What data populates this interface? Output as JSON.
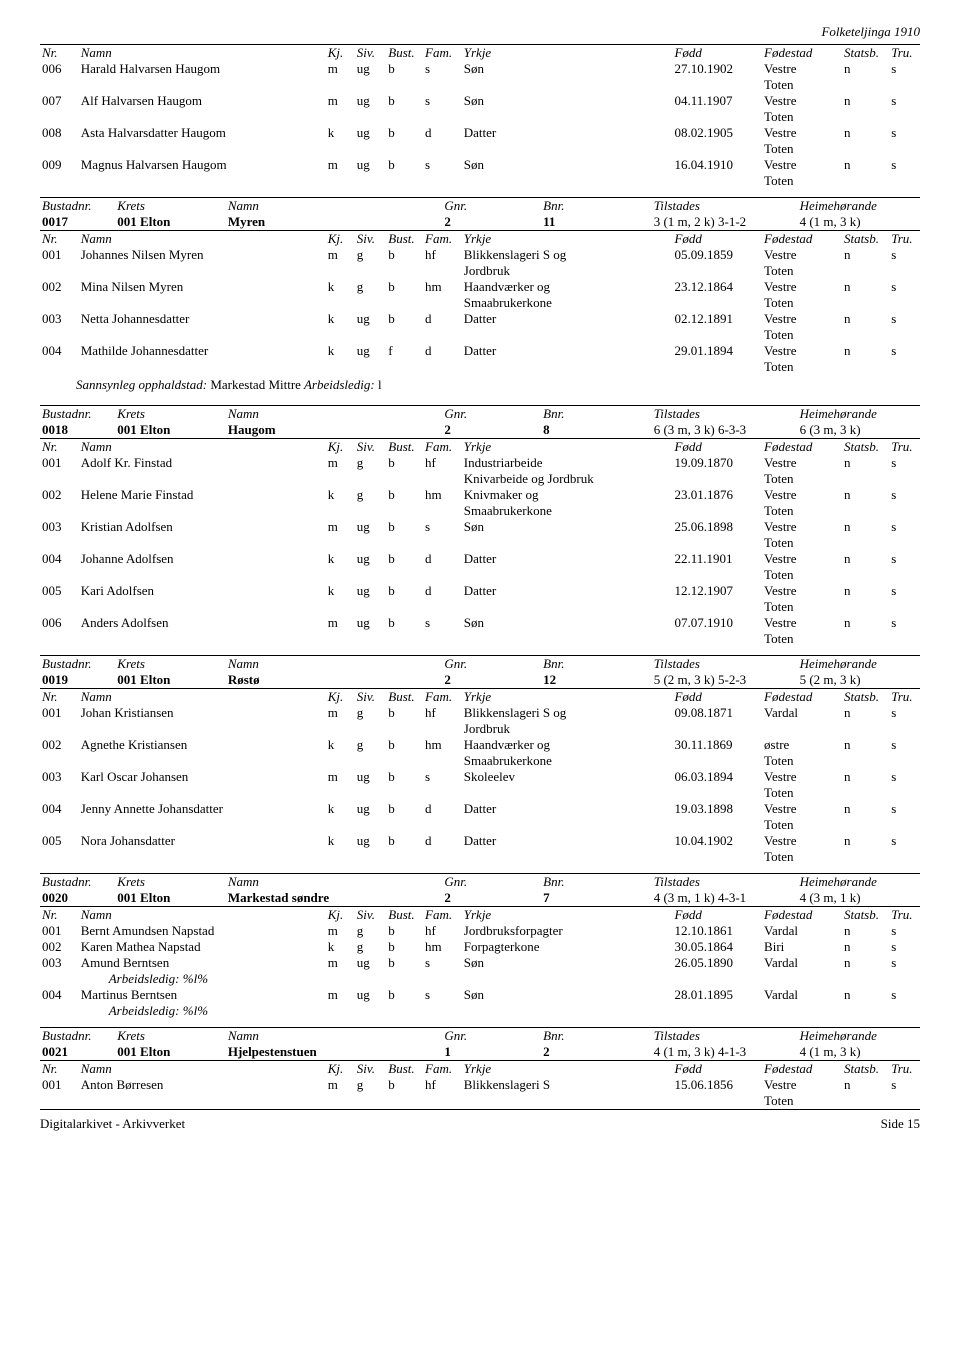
{
  "page_header": "Folketeljinga 1910",
  "people_header": {
    "nr": "Nr.",
    "namn": "Namn",
    "kj": "Kj.",
    "siv": "Siv.",
    "bust": "Bust.",
    "fam": "Fam.",
    "yrkje": "Yrkje",
    "fodd": "Fødd",
    "fodestad": "Fødestad",
    "statsb": "Statsb.",
    "tru": "Tru."
  },
  "dwelling_header": {
    "bustadnr": "Bustadnr.",
    "krets": "Krets",
    "namn": "Namn",
    "gnr": "Gnr.",
    "bnr": "Bnr.",
    "tilstades": "Tilstades",
    "heim": "Heimehørande"
  },
  "top_people": [
    {
      "nr": "006",
      "namn": "Harald Halvarsen Haugom",
      "kj": "m",
      "siv": "ug",
      "bust": "b",
      "fam": "s",
      "yrkje": "Søn",
      "fodd": "27.10.1902",
      "fodestad": "Vestre Toten",
      "stat": "n",
      "tru": "s"
    },
    {
      "nr": "007",
      "namn": "Alf Halvarsen Haugom",
      "kj": "m",
      "siv": "ug",
      "bust": "b",
      "fam": "s",
      "yrkje": "Søn",
      "fodd": "04.11.1907",
      "fodestad": "Vestre Toten",
      "stat": "n",
      "tru": "s"
    },
    {
      "nr": "008",
      "namn": "Asta Halvarsdatter Haugom",
      "kj": "k",
      "siv": "ug",
      "bust": "b",
      "fam": "d",
      "yrkje": "Datter",
      "fodd": "08.02.1905",
      "fodestad": "Vestre Toten",
      "stat": "n",
      "tru": "s"
    },
    {
      "nr": "009",
      "namn": "Magnus Halvarsen Haugom",
      "kj": "m",
      "siv": "ug",
      "bust": "b",
      "fam": "s",
      "yrkje": "Søn",
      "fodd": "16.04.1910",
      "fodestad": "Vestre Toten",
      "stat": "n",
      "tru": "s"
    }
  ],
  "dwellings": [
    {
      "bustadnr": "0017",
      "krets": "001 Elton",
      "namn": "Myren",
      "gnr": "2",
      "bnr": "11",
      "til": "3 (1 m, 2 k) 3-1-2",
      "heim": "4 (1 m, 3 k)",
      "people": [
        {
          "nr": "001",
          "namn": "Johannes Nilsen Myren",
          "kj": "m",
          "siv": "g",
          "bust": "b",
          "fam": "hf",
          "yrkje": "Blikkenslageri S og Jordbruk",
          "fodd": "05.09.1859",
          "fodestad": "Vestre Toten",
          "stat": "n",
          "tru": "s"
        },
        {
          "nr": "002",
          "namn": "Mina Nilsen Myren",
          "kj": "k",
          "siv": "g",
          "bust": "b",
          "fam": "hm",
          "yrkje": "Haandværker og Smaabrukerkone",
          "fodd": "23.12.1864",
          "fodestad": "Vestre Toten",
          "stat": "n",
          "tru": "s"
        },
        {
          "nr": "003",
          "namn": "Netta Johannesdatter",
          "kj": "k",
          "siv": "ug",
          "bust": "b",
          "fam": "d",
          "yrkje": "Datter",
          "fodd": "02.12.1891",
          "fodestad": "Vestre Toten",
          "stat": "n",
          "tru": "s"
        },
        {
          "nr": "004",
          "namn": "Mathilde Johannesdatter",
          "kj": "k",
          "siv": "ug",
          "bust": "f",
          "fam": "d",
          "yrkje": "Datter",
          "fodd": "29.01.1894",
          "fodestad": "Vestre Toten",
          "stat": "n",
          "tru": "s"
        }
      ],
      "note_label": "Sannsynleg opphaldstad:",
      "note_value": "Markestad Mittre",
      "note_extra_label": "Arbeidsledig:",
      "note_extra_value": "l"
    },
    {
      "bustadnr": "0018",
      "krets": "001 Elton",
      "namn": "Haugom",
      "gnr": "2",
      "bnr": "8",
      "til": "6 (3 m, 3 k) 6-3-3",
      "heim": "6 (3 m, 3 k)",
      "people": [
        {
          "nr": "001",
          "namn": "Adolf Kr. Finstad",
          "kj": "m",
          "siv": "g",
          "bust": "b",
          "fam": "hf",
          "yrkje": "Industriarbeide Knivarbeide og Jordbruk",
          "fodd": "19.09.1870",
          "fodestad": "Vestre Toten",
          "stat": "n",
          "tru": "s"
        },
        {
          "nr": "002",
          "namn": "Helene Marie Finstad",
          "kj": "k",
          "siv": "g",
          "bust": "b",
          "fam": "hm",
          "yrkje": "Knivmaker og Smaabrukerkone",
          "fodd": "23.01.1876",
          "fodestad": "Vestre Toten",
          "stat": "n",
          "tru": "s"
        },
        {
          "nr": "003",
          "namn": "Kristian Adolfsen",
          "kj": "m",
          "siv": "ug",
          "bust": "b",
          "fam": "s",
          "yrkje": "Søn",
          "fodd": "25.06.1898",
          "fodestad": "Vestre Toten",
          "stat": "n",
          "tru": "s"
        },
        {
          "nr": "004",
          "namn": "Johanne Adolfsen",
          "kj": "k",
          "siv": "ug",
          "bust": "b",
          "fam": "d",
          "yrkje": "Datter",
          "fodd": "22.11.1901",
          "fodestad": "Vestre Toten",
          "stat": "n",
          "tru": "s"
        },
        {
          "nr": "005",
          "namn": "Kari Adolfsen",
          "kj": "k",
          "siv": "ug",
          "bust": "b",
          "fam": "d",
          "yrkje": "Datter",
          "fodd": "12.12.1907",
          "fodestad": "Vestre Toten",
          "stat": "n",
          "tru": "s"
        },
        {
          "nr": "006",
          "namn": "Anders Adolfsen",
          "kj": "m",
          "siv": "ug",
          "bust": "b",
          "fam": "s",
          "yrkje": "Søn",
          "fodd": "07.07.1910",
          "fodestad": "Vestre Toten",
          "stat": "n",
          "tru": "s"
        }
      ]
    },
    {
      "bustadnr": "0019",
      "krets": "001 Elton",
      "namn": "Røstø",
      "gnr": "2",
      "bnr": "12",
      "til": "5 (2 m, 3 k) 5-2-3",
      "heim": "5 (2 m, 3 k)",
      "people": [
        {
          "nr": "001",
          "namn": "Johan Kristiansen",
          "kj": "m",
          "siv": "g",
          "bust": "b",
          "fam": "hf",
          "yrkje": "Blikkenslageri S og Jordbruk",
          "fodd": "09.08.1871",
          "fodestad": "Vardal",
          "stat": "n",
          "tru": "s"
        },
        {
          "nr": "002",
          "namn": "Agnethe Kristiansen",
          "kj": "k",
          "siv": "g",
          "bust": "b",
          "fam": "hm",
          "yrkje": "Haandværker og Smaabrukerkone",
          "fodd": "30.11.1869",
          "fodestad": "østre Toten",
          "stat": "n",
          "tru": "s"
        },
        {
          "nr": "003",
          "namn": "Karl Oscar Johansen",
          "kj": "m",
          "siv": "ug",
          "bust": "b",
          "fam": "s",
          "yrkje": "Skoleelev",
          "fodd": "06.03.1894",
          "fodestad": "Vestre Toten",
          "stat": "n",
          "tru": "s"
        },
        {
          "nr": "004",
          "namn": "Jenny Annette Johansdatter",
          "kj": "k",
          "siv": "ug",
          "bust": "b",
          "fam": "d",
          "yrkje": "Datter",
          "fodd": "19.03.1898",
          "fodestad": "Vestre Toten",
          "stat": "n",
          "tru": "s"
        },
        {
          "nr": "005",
          "namn": "Nora Johansdatter",
          "kj": "k",
          "siv": "ug",
          "bust": "b",
          "fam": "d",
          "yrkje": "Datter",
          "fodd": "10.04.1902",
          "fodestad": "Vestre Toten",
          "stat": "n",
          "tru": "s"
        }
      ]
    },
    {
      "bustadnr": "0020",
      "krets": "001 Elton",
      "namn": "Markestad søndre",
      "gnr": "2",
      "bnr": "7",
      "til": "4 (3 m, 1 k) 4-3-1",
      "heim": "4 (3 m, 1 k)",
      "people": [
        {
          "nr": "001",
          "namn": "Bernt Amundsen Napstad",
          "kj": "m",
          "siv": "g",
          "bust": "b",
          "fam": "hf",
          "yrkje": "Jordbruksforpagter",
          "fodd": "12.10.1861",
          "fodestad": "Vardal",
          "stat": "n",
          "tru": "s"
        },
        {
          "nr": "002",
          "namn": "Karen Mathea Napstad",
          "kj": "k",
          "siv": "g",
          "bust": "b",
          "fam": "hm",
          "yrkje": "Forpagterkone",
          "fodd": "30.05.1864",
          "fodestad": "Biri",
          "stat": "n",
          "tru": "s"
        },
        {
          "nr": "003",
          "namn": "Amund Berntsen",
          "kj": "m",
          "siv": "ug",
          "bust": "b",
          "fam": "s",
          "yrkje": "Søn",
          "fodd": "26.05.1890",
          "fodestad": "Vardal",
          "stat": "n",
          "tru": "s",
          "arb": "Arbeidsledig:  %l%"
        },
        {
          "nr": "004",
          "namn": "Martinus Berntsen",
          "kj": "m",
          "siv": "ug",
          "bust": "b",
          "fam": "s",
          "yrkje": "Søn",
          "fodd": "28.01.1895",
          "fodestad": "Vardal",
          "stat": "n",
          "tru": "s",
          "arb": "Arbeidsledig:  %l%"
        }
      ]
    },
    {
      "bustadnr": "0021",
      "krets": "001 Elton",
      "namn": "Hjelpestenstuen",
      "gnr": "1",
      "bnr": "2",
      "til": "4 (1 m, 3 k) 4-1-3",
      "heim": "4 (1 m, 3 k)",
      "people": [
        {
          "nr": "001",
          "namn": "Anton Børresen",
          "kj": "m",
          "siv": "g",
          "bust": "b",
          "fam": "hf",
          "yrkje": "Blikkenslageri S",
          "fodd": "15.06.1856",
          "fodestad": "Vestre Toten",
          "stat": "n",
          "tru": "s"
        }
      ]
    }
  ],
  "footer_left": "Digitalarkivet - Arkivverket",
  "footer_right": "Side 15"
}
